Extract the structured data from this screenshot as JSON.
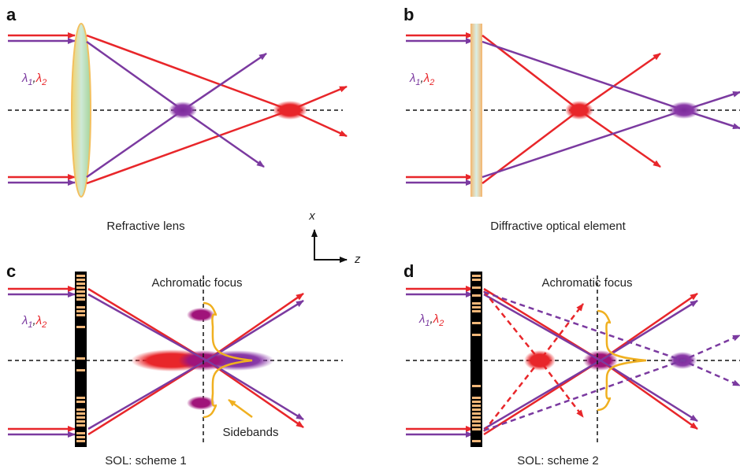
{
  "panels": [
    {
      "label": "a",
      "caption": "Refractive lens",
      "wavelengths": [
        {
          "symbol": "λ",
          "sub": "1"
        },
        {
          "symbol": "λ",
          "sub": "2"
        }
      ],
      "separator": ","
    },
    {
      "label": "b",
      "caption": "Diffractive optical element",
      "wavelengths": [
        {
          "symbol": "λ",
          "sub": "1"
        },
        {
          "symbol": "λ",
          "sub": "2"
        }
      ],
      "separator": ","
    },
    {
      "label": "c",
      "caption": "SOL: scheme 1",
      "focus_label": "Achromatic focus",
      "sidebands_label": "Sidebands",
      "wavelengths": [
        {
          "symbol": "λ",
          "sub": "1"
        },
        {
          "symbol": "λ",
          "sub": "2"
        }
      ],
      "separator": ","
    },
    {
      "label": "d",
      "caption": "SOL: scheme 2",
      "focus_label": "Achromatic focus",
      "wavelengths": [
        {
          "symbol": "λ",
          "sub": "1"
        },
        {
          "symbol": "λ",
          "sub": "2"
        }
      ],
      "separator": ","
    }
  ],
  "axes": {
    "x": "x",
    "z": "z"
  }
}
